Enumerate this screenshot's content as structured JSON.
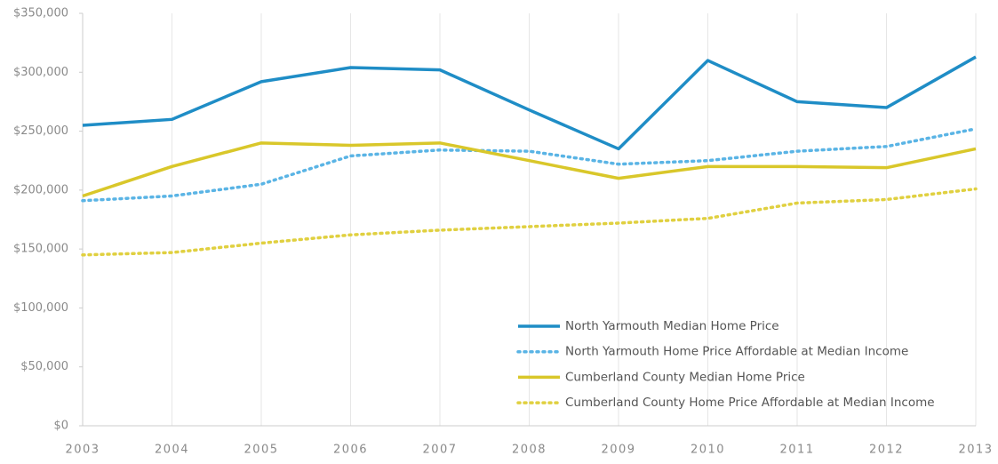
{
  "chart_data": {
    "type": "line",
    "categories": [
      "2003",
      "2004",
      "2005",
      "2006",
      "2007",
      "2008",
      "2009",
      "2010",
      "2011",
      "2012",
      "2013"
    ],
    "series": [
      {
        "name": "North Yarmouth Median Home Price",
        "color": "#1f8dc6",
        "dash": "solid",
        "values": [
          255000,
          260000,
          292000,
          304000,
          302000,
          268000,
          235000,
          310000,
          275000,
          270000,
          313000
        ]
      },
      {
        "name": "North Yarmouth Home Price Affordable at Median Income",
        "color": "#5ab4e5",
        "dash": "dotted",
        "values": [
          191000,
          195000,
          205000,
          229000,
          234000,
          233000,
          222000,
          225000,
          233000,
          237000,
          252000
        ]
      },
      {
        "name": "Cumberland County Median Home Price",
        "color": "#d9c72a",
        "dash": "solid",
        "values": [
          195000,
          220000,
          240000,
          238000,
          240000,
          225000,
          210000,
          220000,
          220000,
          219000,
          235000
        ]
      },
      {
        "name": "Cumberland County Home Price Affordable at Median Income",
        "color": "#e0d040",
        "dash": "dotted",
        "values": [
          145000,
          147000,
          155000,
          162000,
          166000,
          169000,
          172000,
          176000,
          189000,
          192000,
          201000
        ]
      }
    ],
    "ylim": [
      0,
      350000
    ],
    "yticks": [
      {
        "value": 0,
        "label": "$0"
      },
      {
        "value": 50000,
        "label": "$50,000"
      },
      {
        "value": 100000,
        "label": "$100,000"
      },
      {
        "value": 150000,
        "label": "$150,000"
      },
      {
        "value": 200000,
        "label": "$200,000"
      },
      {
        "value": 250000,
        "label": "$250,000"
      },
      {
        "value": 300000,
        "label": "$300,000"
      },
      {
        "value": 350000,
        "label": "$350,000"
      }
    ],
    "grid": true,
    "legend": "lower right"
  }
}
